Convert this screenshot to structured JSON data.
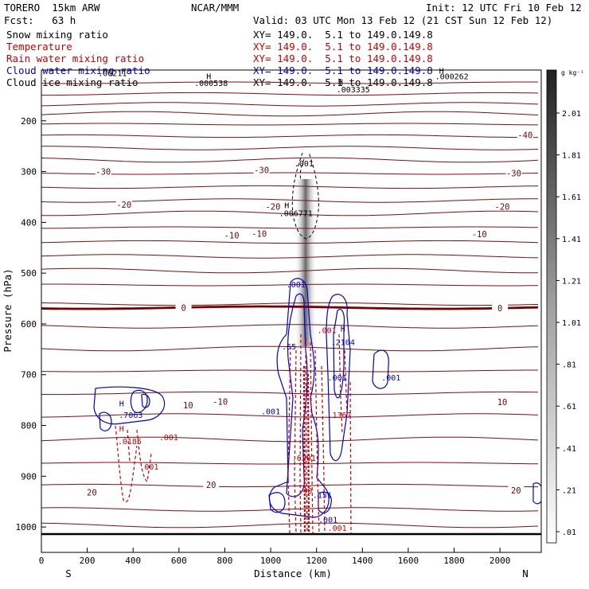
{
  "header": {
    "model": "TORERO  15km ARW",
    "org": "NCAR/MMM",
    "init": "Init: 12 UTC Fri 10 Feb 12",
    "fcst": "Fcst:   63 h",
    "valid": "Valid: 03 UTC Mon 13 Feb 12 (21 CST Sun 12 Feb 12)",
    "fields": [
      {
        "name": "Snow mixing ratio",
        "xy": "XY= 149.0.  5.1 to 149.0.149.8",
        "color": "#000000"
      },
      {
        "name": "Temperature",
        "xy": "XY= 149.0.  5.1 to 149.0.149.8",
        "color": "#cc0000"
      },
      {
        "name": "Rain water mixing ratio",
        "xy": "XY= 149.0.  5.1 to 149.0.149.8",
        "color": "#cc0000"
      },
      {
        "name": "Cloud water mixing ratio",
        "xy": "XY= 149.0.  5.1 to 149.0.149.8",
        "color": "#0000cc"
      },
      {
        "name": "Cloud ice mixing ratio",
        "xy": "XY= 149.0.  5.1 to 149.0.149.8",
        "color": "#000000"
      }
    ]
  },
  "chart_data": {
    "type": "cross-section",
    "xlabel": "Distance (km)",
    "ylabel": "Pressure (hPa)",
    "xlim": [
      0,
      2180
    ],
    "ylim": [
      1050,
      100
    ],
    "xticks": [
      0,
      200,
      400,
      600,
      800,
      1000,
      1200,
      1400,
      1600,
      1800,
      2000
    ],
    "yticks": [
      200,
      300,
      400,
      500,
      600,
      700,
      800,
      900,
      1000
    ],
    "left_end": "S",
    "right_end": "N",
    "colorbar": {
      "unit": "g kg⁻¹",
      "ticks": [
        "2.01",
        "1.81",
        "1.61",
        "1.41",
        "1.21",
        "1.01",
        ".81",
        ".61",
        ".41",
        ".21",
        ".01"
      ]
    },
    "temperature_labels": [
      {
        "text": "-40",
        "x": 2110,
        "p": 228
      },
      {
        "text": "-30",
        "x": 270,
        "p": 300
      },
      {
        "text": "-30",
        "x": 960,
        "p": 297
      },
      {
        "text": "-30",
        "x": 2060,
        "p": 303
      },
      {
        "text": "-20",
        "x": 360,
        "p": 365
      },
      {
        "text": "-20",
        "x": 1010,
        "p": 369
      },
      {
        "text": "-20",
        "x": 2010,
        "p": 369
      },
      {
        "text": "-10",
        "x": 830,
        "p": 425
      },
      {
        "text": "-10",
        "x": 950,
        "p": 422
      },
      {
        "text": "-10",
        "x": 1910,
        "p": 423
      },
      {
        "text": "0",
        "x": 620,
        "p": 568
      },
      {
        "text": "0",
        "x": 2000,
        "p": 569
      },
      {
        "text": "10",
        "x": 640,
        "p": 760
      },
      {
        "text": "-10",
        "x": 780,
        "p": 753
      },
      {
        "text": "10",
        "x": 2010,
        "p": 754
      },
      {
        "text": "20",
        "x": 740,
        "p": 917
      },
      {
        "text": "20",
        "x": 220,
        "p": 932
      },
      {
        "text": "20",
        "x": 2070,
        "p": 928
      }
    ],
    "annotations": [
      {
        "text": ".00211",
        "x": 310,
        "p": 112,
        "color": "#000000"
      },
      {
        "text": "H",
        "x": 730,
        "p": 118,
        "color": "#000000"
      },
      {
        "text": ".000538",
        "x": 740,
        "p": 131,
        "color": "#000000"
      },
      {
        "text": "H",
        "x": 1305,
        "p": 129,
        "color": "#000000"
      },
      {
        "text": ".003335",
        "x": 1360,
        "p": 144,
        "color": "#000000"
      },
      {
        "text": "H",
        "x": 1745,
        "p": 107,
        "color": "#000000"
      },
      {
        "text": ".000262",
        "x": 1790,
        "p": 118,
        "color": "#000000"
      },
      {
        "text": ".001",
        "x": 1145,
        "p": 290,
        "color": "#000000"
      },
      {
        "text": "H",
        "x": 1070,
        "p": 372,
        "color": "#000000"
      },
      {
        "text": ".006771",
        "x": 1110,
        "p": 388,
        "color": "#000000"
      },
      {
        "text": ".001",
        "x": 1110,
        "p": 528,
        "color": "#0000cc"
      },
      {
        "text": ".65",
        "x": 1080,
        "p": 650,
        "color": "#0000cc"
      },
      {
        "text": ".001",
        "x": 1245,
        "p": 618,
        "color": "#cc0000"
      },
      {
        "text": "H",
        "x": 1315,
        "p": 615,
        "color": "#0000cc"
      },
      {
        "text": ".2104",
        "x": 1315,
        "p": 642,
        "color": "#0000cc"
      },
      {
        "text": ".001",
        "x": 1290,
        "p": 711,
        "color": "#0000cc"
      },
      {
        "text": ".001",
        "x": 1525,
        "p": 711,
        "color": "#0000cc"
      },
      {
        "text": ".001",
        "x": 1000,
        "p": 778,
        "color": "#0000cc"
      },
      {
        "text": ".1367",
        "x": 1300,
        "p": 785,
        "color": "#cc0000"
      },
      {
        "text": "H",
        "x": 350,
        "p": 762,
        "color": "#0000cc"
      },
      {
        "text": ".7063",
        "x": 390,
        "p": 785,
        "color": "#0000cc"
      },
      {
        "text": "H",
        "x": 350,
        "p": 812,
        "color": "#cc0000"
      },
      {
        "text": ".0185",
        "x": 385,
        "p": 837,
        "color": "#cc0000"
      },
      {
        "text": ".001",
        "x": 555,
        "p": 829,
        "color": "#cc0000"
      },
      {
        "text": ".001",
        "x": 470,
        "p": 887,
        "color": "#cc0000"
      },
      {
        "text": ".6201",
        "x": 1145,
        "p": 870,
        "color": "#cc0000"
      },
      {
        "text": ".40",
        "x": 1150,
        "p": 934,
        "color": "#cc0000"
      },
      {
        "text": ".151",
        "x": 1225,
        "p": 943,
        "color": "#0000cc"
      },
      {
        "text": ".001",
        "x": 1250,
        "p": 991,
        "color": "#0000cc"
      },
      {
        "text": ".001",
        "x": 1290,
        "p": 1008,
        "color": "#cc0000"
      }
    ]
  }
}
